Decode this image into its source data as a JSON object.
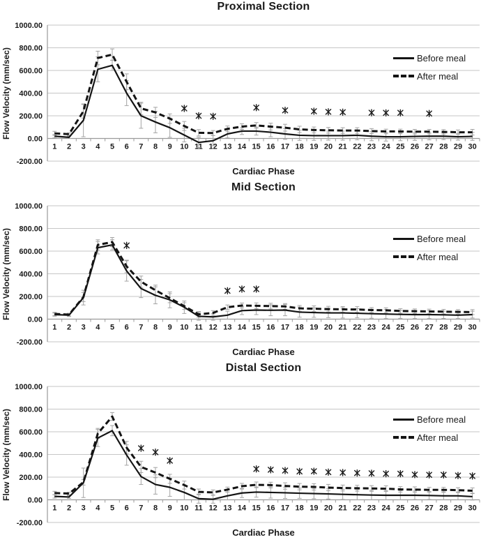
{
  "figure": {
    "ylabel": "Flow Velocity (mm/sec)",
    "xlabel": "Cardiac Phase",
    "legend": [
      "Before meal",
      "After meal"
    ],
    "colors": {
      "series_line": "#141414",
      "error_bar": "#a3a3a3",
      "gridline": "#c6c6c6",
      "axis": "#9a9a9a",
      "marker": "#1a1a1a",
      "text": "#1a1a1a",
      "background": "#ffffff"
    }
  },
  "chart_data": [
    {
      "type": "line",
      "title": "Proximal Section",
      "xlabel": "Cardiac Phase",
      "ylabel": "Flow Velocity (mm/sec)",
      "ylim": [
        -200,
        1000
      ],
      "ytick_values": [
        1000,
        800,
        600,
        400,
        200,
        0,
        -200
      ],
      "ytick_labels": [
        "1000.00",
        "800.00",
        "600.00",
        "400.00",
        "200.00",
        "0.00",
        "-200.00"
      ],
      "categories": [
        1,
        2,
        3,
        4,
        5,
        6,
        7,
        8,
        9,
        10,
        11,
        12,
        13,
        14,
        15,
        16,
        17,
        18,
        19,
        20,
        21,
        22,
        23,
        24,
        25,
        26,
        27,
        28,
        29,
        30
      ],
      "legend_position": "right",
      "grid": true,
      "series": [
        {
          "name": "Before meal",
          "style": "solid",
          "values": [
            20,
            10,
            160,
            610,
            645,
            400,
            200,
            145,
            95,
            30,
            -35,
            -20,
            40,
            65,
            65,
            55,
            40,
            28,
            25,
            25,
            25,
            28,
            20,
            15,
            15,
            18,
            20,
            20,
            15,
            18
          ],
          "errors": [
            15,
            10,
            145,
            110,
            45,
            110,
            110,
            95,
            85,
            60,
            45,
            45,
            35,
            30,
            35,
            40,
            48,
            45,
            42,
            40,
            40,
            40,
            40,
            38,
            35,
            35,
            32,
            30,
            30,
            35
          ]
        },
        {
          "name": "After meal",
          "style": "dashed",
          "values": [
            45,
            38,
            240,
            710,
            740,
            500,
            265,
            230,
            175,
            110,
            50,
            48,
            85,
            105,
            115,
            105,
            95,
            80,
            75,
            72,
            70,
            70,
            65,
            62,
            62,
            60,
            60,
            58,
            55,
            55
          ],
          "errors": [
            18,
            12,
            60,
            60,
            50,
            70,
            55,
            45,
            42,
            40,
            28,
            22,
            25,
            25,
            25,
            30,
            30,
            28,
            26,
            25,
            25,
            25,
            22,
            20,
            20,
            20,
            20,
            20,
            20,
            25
          ]
        }
      ],
      "significance_markers": [
        {
          "phase": 10,
          "value": 265
        },
        {
          "phase": 11,
          "value": 200
        },
        {
          "phase": 12,
          "value": 195
        },
        {
          "phase": 15,
          "value": 272
        },
        {
          "phase": 17,
          "value": 248
        },
        {
          "phase": 19,
          "value": 240
        },
        {
          "phase": 20,
          "value": 235
        },
        {
          "phase": 21,
          "value": 232
        },
        {
          "phase": 23,
          "value": 227
        },
        {
          "phase": 24,
          "value": 226
        },
        {
          "phase": 25,
          "value": 226
        },
        {
          "phase": 27,
          "value": 220
        }
      ]
    },
    {
      "type": "line",
      "title": "Mid Section",
      "xlabel": "Cardiac Phase",
      "ylabel": "Flow Velocity (mm/sec)",
      "ylim": [
        -200,
        1000
      ],
      "ytick_values": [
        1000,
        800,
        600,
        400,
        200,
        0,
        -200
      ],
      "ytick_labels": [
        "1000.00",
        "800.00",
        "600.00",
        "400.00",
        "200.00",
        "0.00",
        "-200.00"
      ],
      "categories": [
        1,
        2,
        3,
        4,
        5,
        6,
        7,
        8,
        9,
        10,
        11,
        12,
        13,
        14,
        15,
        16,
        17,
        18,
        19,
        20,
        21,
        22,
        23,
        24,
        25,
        26,
        27,
        28,
        29,
        30
      ],
      "legend_position": "right",
      "grid": true,
      "series": [
        {
          "name": "Before meal",
          "style": "solid",
          "values": [
            40,
            35,
            190,
            630,
            655,
            425,
            270,
            210,
            170,
            105,
            25,
            20,
            35,
            75,
            80,
            78,
            80,
            62,
            58,
            55,
            55,
            52,
            48,
            45,
            42,
            40,
            40,
            38,
            35,
            40
          ],
          "errors": [
            14,
            12,
            65,
            55,
            45,
            90,
            80,
            75,
            70,
            55,
            35,
            30,
            35,
            35,
            40,
            48,
            50,
            45,
            42,
            42,
            45,
            40,
            40,
            40,
            35,
            35,
            35,
            32,
            30,
            30
          ]
        },
        {
          "name": "After meal",
          "style": "dashed",
          "values": [
            46,
            40,
            195,
            655,
            680,
            465,
            330,
            255,
            185,
            115,
            42,
            55,
            105,
            120,
            118,
            115,
            112,
            95,
            92,
            88,
            86,
            85,
            80,
            78,
            72,
            70,
            68,
            66,
            64,
            62
          ],
          "errors": [
            14,
            12,
            40,
            45,
            40,
            55,
            50,
            45,
            40,
            30,
            25,
            20,
            20,
            22,
            25,
            25,
            25,
            25,
            25,
            25,
            25,
            25,
            22,
            22,
            20,
            20,
            20,
            20,
            20,
            22
          ]
        }
      ],
      "significance_markers": [
        {
          "phase": 6,
          "value": 650
        },
        {
          "phase": 13,
          "value": 250
        },
        {
          "phase": 14,
          "value": 265
        },
        {
          "phase": 15,
          "value": 265
        }
      ]
    },
    {
      "type": "line",
      "title": "Distal Section",
      "xlabel": "Cardiac Phase",
      "ylabel": "Flow Velocity (mm/sec)",
      "ylim": [
        -200,
        1000
      ],
      "ytick_values": [
        1000,
        800,
        600,
        400,
        200,
        0,
        -200
      ],
      "ytick_labels": [
        "1000.00",
        "800.00",
        "600.00",
        "400.00",
        "200.00",
        "0.00",
        "-200.00"
      ],
      "categories": [
        1,
        2,
        3,
        4,
        5,
        6,
        7,
        8,
        9,
        10,
        11,
        12,
        13,
        14,
        15,
        16,
        17,
        18,
        19,
        20,
        21,
        22,
        23,
        24,
        25,
        26,
        27,
        28,
        29,
        30
      ],
      "legend_position": "right",
      "grid": true,
      "series": [
        {
          "name": "Before meal",
          "style": "solid",
          "values": [
            30,
            25,
            150,
            545,
            610,
            395,
            205,
            135,
            110,
            65,
            10,
            5,
            35,
            60,
            68,
            65,
            62,
            58,
            55,
            52,
            48,
            45,
            42,
            40,
            40,
            40,
            38,
            35,
            35,
            28
          ],
          "errors": [
            15,
            12,
            130,
            75,
            45,
            90,
            70,
            85,
            80,
            65,
            40,
            35,
            35,
            40,
            45,
            50,
            50,
            45,
            45,
            45,
            45,
            45,
            42,
            40,
            40,
            38,
            35,
            35,
            35,
            30
          ]
        },
        {
          "name": "After meal",
          "style": "dashed",
          "values": [
            60,
            55,
            155,
            585,
            735,
            460,
            290,
            240,
            185,
            130,
            70,
            65,
            90,
            120,
            132,
            130,
            122,
            116,
            114,
            108,
            104,
            102,
            100,
            98,
            92,
            90,
            88,
            88,
            85,
            80
          ],
          "errors": [
            15,
            12,
            25,
            45,
            35,
            55,
            50,
            45,
            40,
            35,
            25,
            22,
            22,
            25,
            25,
            25,
            28,
            28,
            28,
            28,
            26,
            26,
            25,
            25,
            24,
            24,
            22,
            22,
            22,
            25
          ]
        }
      ],
      "significance_markers": [
        {
          "phase": 7,
          "value": 455
        },
        {
          "phase": 8,
          "value": 420
        },
        {
          "phase": 9,
          "value": 345
        },
        {
          "phase": 15,
          "value": 272
        },
        {
          "phase": 16,
          "value": 265
        },
        {
          "phase": 17,
          "value": 258
        },
        {
          "phase": 18,
          "value": 250
        },
        {
          "phase": 19,
          "value": 252
        },
        {
          "phase": 20,
          "value": 244
        },
        {
          "phase": 21,
          "value": 240
        },
        {
          "phase": 22,
          "value": 236
        },
        {
          "phase": 23,
          "value": 234
        },
        {
          "phase": 24,
          "value": 230
        },
        {
          "phase": 25,
          "value": 230
        },
        {
          "phase": 26,
          "value": 222
        },
        {
          "phase": 27,
          "value": 220
        },
        {
          "phase": 28,
          "value": 220
        },
        {
          "phase": 29,
          "value": 214
        },
        {
          "phase": 30,
          "value": 210
        }
      ]
    }
  ]
}
